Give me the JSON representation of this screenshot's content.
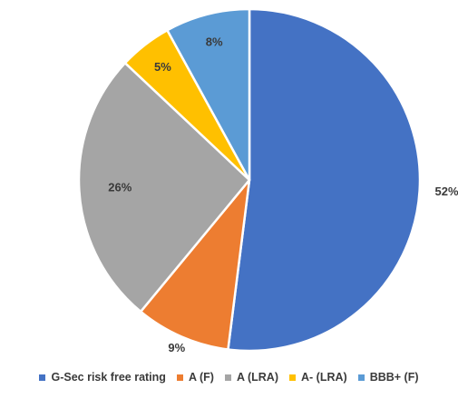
{
  "chart_data": {
    "type": "pie",
    "title": "",
    "categories": [
      "G-Sec risk free rating",
      "A (F)",
      "A (LRA)",
      "A- (LRA)",
      "BBB+ (F)"
    ],
    "values": [
      52,
      9,
      26,
      5,
      8
    ],
    "value_labels": [
      "52%",
      "9%",
      "26%",
      "5%",
      "8%"
    ],
    "colors": [
      "#4472C4",
      "#ED7D31",
      "#A5A5A5",
      "#FFC000",
      "#5B9BD5"
    ],
    "start_angle": "12 o'clock",
    "direction": "clockwise",
    "legend_position": "bottom"
  }
}
